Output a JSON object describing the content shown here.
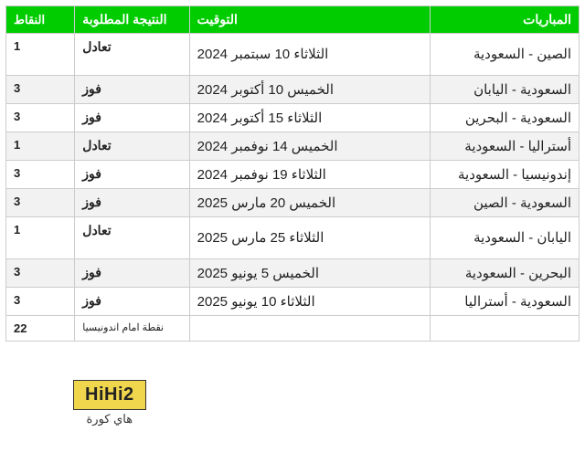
{
  "table": {
    "header_bg": "#00cc00",
    "header_fg": "#ffffff",
    "alt_row_bg": "#f2f2f2",
    "border_color": "#cccccc",
    "columns": {
      "match": "المباريات",
      "date": "التوقيت",
      "result": "النتيجة المطلوبة",
      "points": "النقاط"
    },
    "rows": [
      {
        "match": "الصين - السعودية",
        "date": "الثلاثاء 10 سبتمبر 2024",
        "result": "تعادل",
        "points": "1",
        "tall": true
      },
      {
        "match": "السعودية - اليابان",
        "date": "الخميس 10 أكتوبر 2024",
        "result": "فوز",
        "points": "3"
      },
      {
        "match": "السعودية - البحرين",
        "date": "الثلاثاء 15 أكتوبر 2024",
        "result": "فوز",
        "points": "3"
      },
      {
        "match": "أستراليا - السعودية",
        "date": "الخميس 14 نوفمبر 2024",
        "result": "تعادل",
        "points": "1"
      },
      {
        "match": "إندونيسيا - السعودية",
        "date": "الثلاثاء 19 نوفمبر 2024",
        "result": "فوز",
        "points": "3"
      },
      {
        "match": "السعودية - الصين",
        "date": "الخميس 20 مارس 2025",
        "result": "فوز",
        "points": "3"
      },
      {
        "match": "اليابان - السعودية",
        "date": "الثلاثاء 25 مارس 2025",
        "result": "تعادل",
        "points": "1",
        "tall": true
      },
      {
        "match": "البحرين - السعودية",
        "date": "الخميس 5 يونيو 2025",
        "result": "فوز",
        "points": "3"
      },
      {
        "match": "السعودية - أستراليا",
        "date": "الثلاثاء 10 يونيو 2025",
        "result": "فوز",
        "points": "3"
      }
    ],
    "footer": {
      "note": "نقطة امام اندونيسيا",
      "total": "22"
    }
  },
  "logo": {
    "brand": "HiHi2",
    "tagline": "هاي كورة"
  }
}
